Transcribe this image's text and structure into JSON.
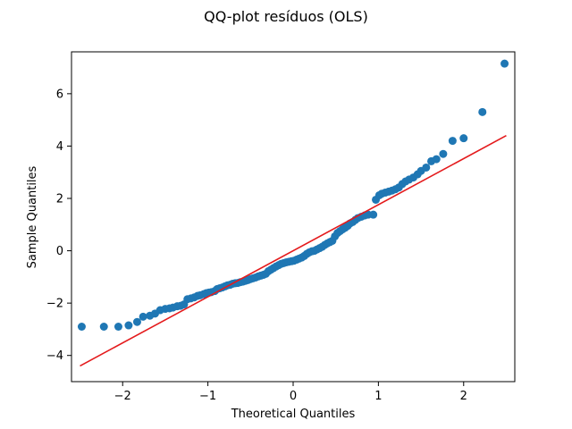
{
  "chart_data": {
    "type": "scatter",
    "title": "QQ-plot resíduos (OLS)",
    "xlabel": "Theoretical Quantiles",
    "ylabel": "Sample Quantiles",
    "xlim": [
      -2.6,
      2.6
    ],
    "ylim": [
      -5.0,
      7.6
    ],
    "xticks": [
      -2,
      -1,
      0,
      1,
      2
    ],
    "xtick_labels": [
      "−2",
      "−1",
      "0",
      "1",
      "2"
    ],
    "yticks": [
      -4,
      -2,
      0,
      2,
      4,
      6
    ],
    "ytick_labels": [
      "−4",
      "−2",
      "0",
      "2",
      "4",
      "6"
    ],
    "grid": false,
    "marker_color": "#1f77b4",
    "line_color": "#e41a1c",
    "reference_line": {
      "x": [
        -2.5,
        2.5
      ],
      "y": [
        -4.4,
        4.4
      ]
    },
    "points": [
      [
        -2.48,
        -2.9
      ],
      [
        -2.22,
        -2.9
      ],
      [
        -2.05,
        -2.9
      ],
      [
        -1.93,
        -2.85
      ],
      [
        -1.83,
        -2.72
      ],
      [
        -1.76,
        -2.52
      ],
      [
        -1.68,
        -2.48
      ],
      [
        -1.62,
        -2.4
      ],
      [
        -1.56,
        -2.27
      ],
      [
        -1.5,
        -2.22
      ],
      [
        -1.45,
        -2.2
      ],
      [
        -1.41,
        -2.17
      ],
      [
        -1.36,
        -2.12
      ],
      [
        -1.32,
        -2.1
      ],
      [
        -1.28,
        -2.05
      ],
      [
        -1.24,
        -1.85
      ],
      [
        -1.2,
        -1.82
      ],
      [
        -1.16,
        -1.78
      ],
      [
        -1.12,
        -1.72
      ],
      [
        -1.09,
        -1.7
      ],
      [
        -1.05,
        -1.66
      ],
      [
        -1.02,
        -1.62
      ],
      [
        -0.99,
        -1.6
      ],
      [
        -0.96,
        -1.58
      ],
      [
        -0.92,
        -1.54
      ],
      [
        -0.89,
        -1.46
      ],
      [
        -0.86,
        -1.43
      ],
      [
        -0.83,
        -1.4
      ],
      [
        -0.8,
        -1.36
      ],
      [
        -0.77,
        -1.32
      ],
      [
        -0.74,
        -1.3
      ],
      [
        -0.71,
        -1.26
      ],
      [
        -0.68,
        -1.24
      ],
      [
        -0.65,
        -1.23
      ],
      [
        -0.62,
        -1.2
      ],
      [
        -0.59,
        -1.18
      ],
      [
        -0.56,
        -1.15
      ],
      [
        -0.53,
        -1.12
      ],
      [
        -0.5,
        -1.08
      ],
      [
        -0.47,
        -1.05
      ],
      [
        -0.44,
        -1.02
      ],
      [
        -0.41,
        -0.98
      ],
      [
        -0.38,
        -0.95
      ],
      [
        -0.35,
        -0.92
      ],
      [
        -0.32,
        -0.88
      ],
      [
        -0.29,
        -0.78
      ],
      [
        -0.26,
        -0.72
      ],
      [
        -0.23,
        -0.66
      ],
      [
        -0.2,
        -0.6
      ],
      [
        -0.17,
        -0.55
      ],
      [
        -0.14,
        -0.5
      ],
      [
        -0.11,
        -0.47
      ],
      [
        -0.08,
        -0.44
      ],
      [
        -0.05,
        -0.42
      ],
      [
        -0.02,
        -0.4
      ],
      [
        0.01,
        -0.38
      ],
      [
        0.04,
        -0.34
      ],
      [
        0.07,
        -0.3
      ],
      [
        0.1,
        -0.26
      ],
      [
        0.13,
        -0.2
      ],
      [
        0.16,
        -0.12
      ],
      [
        0.19,
        -0.06
      ],
      [
        0.22,
        -0.02
      ],
      [
        0.25,
        0.0
      ],
      [
        0.28,
        0.05
      ],
      [
        0.31,
        0.1
      ],
      [
        0.34,
        0.15
      ],
      [
        0.37,
        0.22
      ],
      [
        0.4,
        0.28
      ],
      [
        0.43,
        0.33
      ],
      [
        0.46,
        0.38
      ],
      [
        0.49,
        0.55
      ],
      [
        0.52,
        0.68
      ],
      [
        0.55,
        0.75
      ],
      [
        0.58,
        0.82
      ],
      [
        0.61,
        0.88
      ],
      [
        0.64,
        0.95
      ],
      [
        0.67,
        1.05
      ],
      [
        0.7,
        1.1
      ],
      [
        0.73,
        1.18
      ],
      [
        0.76,
        1.25
      ],
      [
        0.8,
        1.3
      ],
      [
        0.84,
        1.35
      ],
      [
        0.88,
        1.38
      ],
      [
        0.94,
        1.38
      ],
      [
        0.97,
        1.95
      ],
      [
        1.01,
        2.12
      ],
      [
        1.04,
        2.18
      ],
      [
        1.08,
        2.22
      ],
      [
        1.12,
        2.26
      ],
      [
        1.16,
        2.3
      ],
      [
        1.2,
        2.35
      ],
      [
        1.24,
        2.42
      ],
      [
        1.28,
        2.55
      ],
      [
        1.32,
        2.65
      ],
      [
        1.36,
        2.72
      ],
      [
        1.41,
        2.8
      ],
      [
        1.46,
        2.92
      ],
      [
        1.5,
        3.05
      ],
      [
        1.56,
        3.18
      ],
      [
        1.62,
        3.42
      ],
      [
        1.68,
        3.5
      ],
      [
        1.76,
        3.7
      ],
      [
        1.87,
        4.2
      ],
      [
        2.0,
        4.3
      ],
      [
        2.22,
        5.3
      ],
      [
        2.48,
        7.15
      ]
    ]
  }
}
